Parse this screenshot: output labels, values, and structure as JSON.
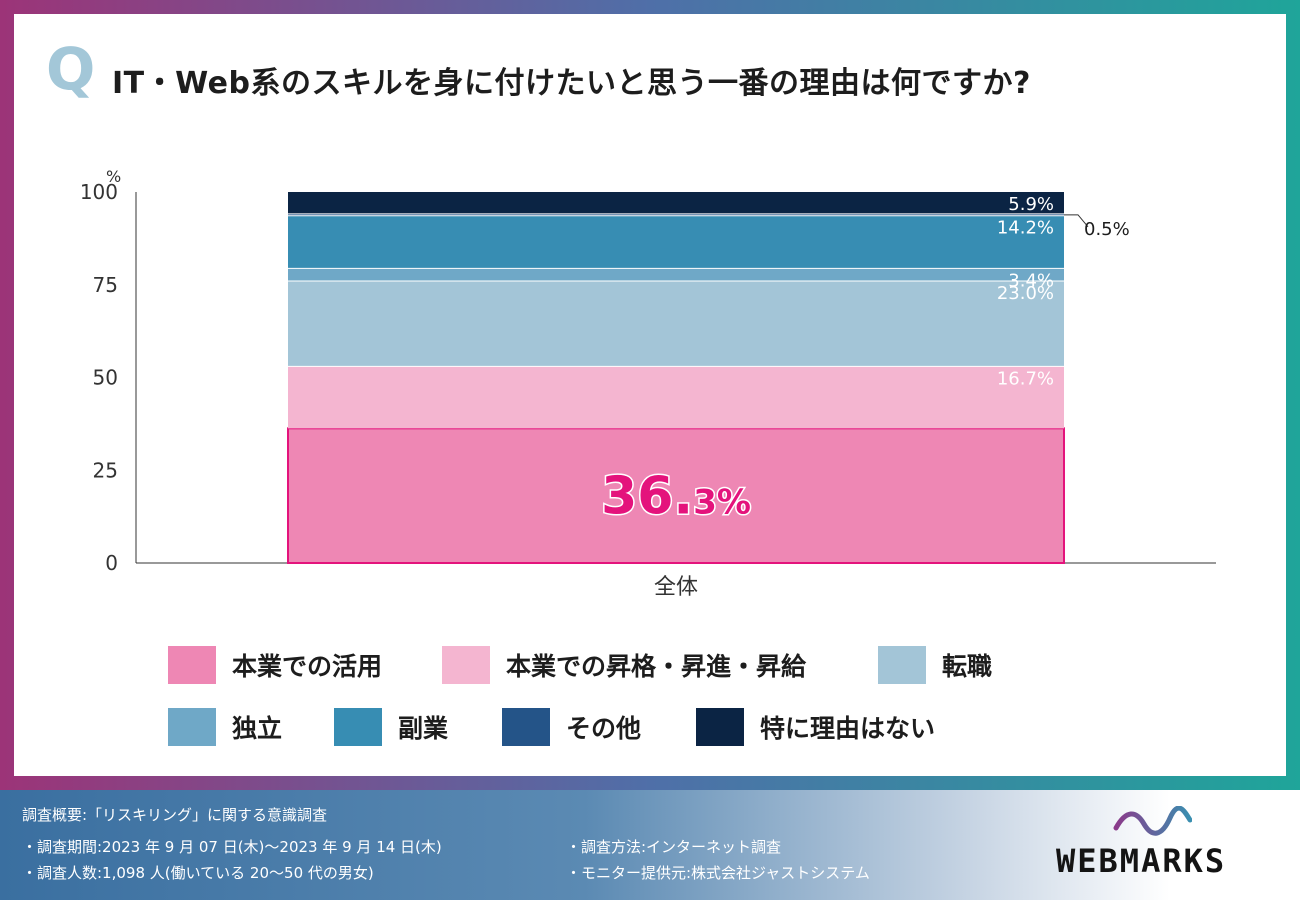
{
  "header": {
    "q_mark": "Q",
    "question": "IT・Web系のスキルを身に付けたいと思う一番の理由は何ですか?"
  },
  "chart_data": {
    "type": "bar",
    "stacked": true,
    "categories": [
      "全体"
    ],
    "ylabel": "%",
    "ylim": [
      0,
      100
    ],
    "yticks": [
      "0",
      "25",
      "50",
      "75",
      "100"
    ],
    "series": [
      {
        "name": "本業での活用",
        "values": [
          36.3
        ],
        "label": "36.3%",
        "color": "#ee87b4"
      },
      {
        "name": "本業での昇格・昇進・昇給",
        "values": [
          16.7
        ],
        "label": "16.7%",
        "color": "#f4b5d0"
      },
      {
        "name": "転職",
        "values": [
          23.0
        ],
        "label": "23.0%",
        "color": "#a3c5d7"
      },
      {
        "name": "独立",
        "values": [
          3.4
        ],
        "label": "3.4%",
        "color": "#6fa8c7"
      },
      {
        "name": "副業",
        "values": [
          14.2
        ],
        "label": "14.2%",
        "color": "#378db3"
      },
      {
        "name": "その他",
        "values": [
          0.5
        ],
        "label": "0.5%",
        "color": "#245488"
      },
      {
        "name": "特に理由はない",
        "values": [
          5.9
        ],
        "label": "5.9%",
        "color": "#0b2444"
      }
    ],
    "highlight": {
      "big": "36.",
      "small": "3%",
      "color": "#e4137c"
    }
  },
  "legend": {
    "items": [
      {
        "label": "本業での活用",
        "color": "#ee87b4"
      },
      {
        "label": "本業での昇格・昇進・昇給",
        "color": "#f4b5d0"
      },
      {
        "label": "転職",
        "color": "#a3c5d7"
      },
      {
        "label": "独立",
        "color": "#6fa8c7"
      },
      {
        "label": "副業",
        "color": "#378db3"
      },
      {
        "label": "その他",
        "color": "#245488"
      },
      {
        "label": "特に理由はない",
        "color": "#0b2444"
      }
    ]
  },
  "footer": {
    "title": "調査概要:「リスキリング」に関する意識調査",
    "period": "・調査期間:2023 年 9 月 07 日(木)〜2023 年 9 月 14 日(木)",
    "respondents": "・調査人数:1,098 人(働いている 20〜50 代の男女)",
    "method": "・調査方法:インターネット調査",
    "monitor": "・モニター提供元:株式会社ジャストシステム"
  },
  "logo": {
    "text": "WEBMARKS",
    "wave_color": "#3a8fb0",
    "wave_color2": "#8a3a8a"
  }
}
